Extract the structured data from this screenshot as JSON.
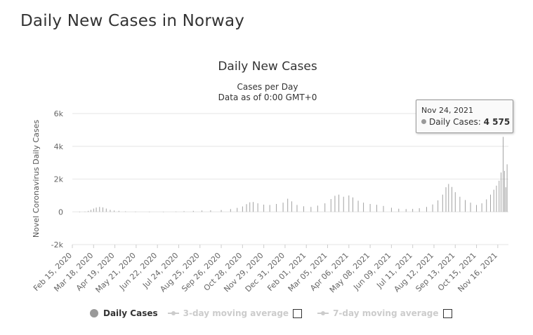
{
  "page": {
    "title": "Daily New Cases in Norway"
  },
  "chart_data": {
    "type": "bar",
    "title": "Daily New Cases",
    "subtitle_lines": [
      "Cases per Day",
      "Data as of 0:00 GMT+0"
    ],
    "ylabel": "Novel Coronavirus Daily Cases",
    "xlabel": "",
    "ylim": [
      -2000,
      6000
    ],
    "y_ticks": [
      {
        "value": -2000,
        "label": "-2k"
      },
      {
        "value": 0,
        "label": "0"
      },
      {
        "value": 2000,
        "label": "2k"
      },
      {
        "value": 4000,
        "label": "4k"
      },
      {
        "value": 6000,
        "label": "6k"
      }
    ],
    "x_range": [
      "2020-02-15",
      "2021-12-02"
    ],
    "x_ticks": [
      "Feb 15, 2020",
      "Mar 18, 2020",
      "Apr 19, 2020",
      "May 21, 2020",
      "Jun 22, 2020",
      "Jul 24, 2020",
      "Aug 25, 2020",
      "Sep 26, 2020",
      "Oct 28, 2020",
      "Nov 29, 2020",
      "Dec 31, 2020",
      "Feb 01, 2021",
      "Mar 05, 2021",
      "Apr 06, 2021",
      "May 08, 2021",
      "Jun 09, 2021",
      "Jul 11, 2021",
      "Aug 12, 2021",
      "Sep 13, 2021",
      "Oct 15, 2021",
      "Nov 16, 2021"
    ],
    "grid": true,
    "series": [
      {
        "name": "Daily Cases",
        "color": "#999999",
        "points": [
          [
            "2020-02-26",
            1
          ],
          [
            "2020-03-05",
            20
          ],
          [
            "2020-03-10",
            60
          ],
          [
            "2020-03-14",
            120
          ],
          [
            "2020-03-18",
            200
          ],
          [
            "2020-03-22",
            260
          ],
          [
            "2020-03-27",
            300
          ],
          [
            "2020-04-01",
            270
          ],
          [
            "2020-04-06",
            200
          ],
          [
            "2020-04-12",
            120
          ],
          [
            "2020-04-18",
            80
          ],
          [
            "2020-04-25",
            60
          ],
          [
            "2020-05-05",
            30
          ],
          [
            "2020-05-20",
            15
          ],
          [
            "2020-06-10",
            10
          ],
          [
            "2020-07-01",
            10
          ],
          [
            "2020-07-20",
            20
          ],
          [
            "2020-08-01",
            40
          ],
          [
            "2020-08-15",
            60
          ],
          [
            "2020-08-28",
            80
          ],
          [
            "2020-09-10",
            90
          ],
          [
            "2020-09-26",
            110
          ],
          [
            "2020-10-10",
            170
          ],
          [
            "2020-10-20",
            240
          ],
          [
            "2020-10-28",
            330
          ],
          [
            "2020-11-03",
            470
          ],
          [
            "2020-11-08",
            580
          ],
          [
            "2020-11-13",
            600
          ],
          [
            "2020-11-20",
            520
          ],
          [
            "2020-11-29",
            440
          ],
          [
            "2020-12-08",
            420
          ],
          [
            "2020-12-18",
            480
          ],
          [
            "2020-12-28",
            560
          ],
          [
            "2021-01-04",
            800
          ],
          [
            "2021-01-10",
            640
          ],
          [
            "2021-01-18",
            420
          ],
          [
            "2021-01-28",
            340
          ],
          [
            "2021-02-08",
            300
          ],
          [
            "2021-02-18",
            380
          ],
          [
            "2021-03-01",
            520
          ],
          [
            "2021-03-10",
            780
          ],
          [
            "2021-03-16",
            980
          ],
          [
            "2021-03-22",
            1050
          ],
          [
            "2021-03-29",
            920
          ],
          [
            "2021-04-06",
            1000
          ],
          [
            "2021-04-12",
            880
          ],
          [
            "2021-04-20",
            680
          ],
          [
            "2021-04-28",
            560
          ],
          [
            "2021-05-08",
            480
          ],
          [
            "2021-05-18",
            430
          ],
          [
            "2021-05-28",
            360
          ],
          [
            "2021-06-09",
            250
          ],
          [
            "2021-06-20",
            190
          ],
          [
            "2021-07-01",
            170
          ],
          [
            "2021-07-11",
            180
          ],
          [
            "2021-07-21",
            220
          ],
          [
            "2021-08-01",
            300
          ],
          [
            "2021-08-10",
            450
          ],
          [
            "2021-08-18",
            700
          ],
          [
            "2021-08-25",
            1050
          ],
          [
            "2021-08-30",
            1500
          ],
          [
            "2021-09-03",
            1700
          ],
          [
            "2021-09-08",
            1520
          ],
          [
            "2021-09-13",
            1200
          ],
          [
            "2021-09-20",
            920
          ],
          [
            "2021-09-28",
            720
          ],
          [
            "2021-10-06",
            560
          ],
          [
            "2021-10-15",
            420
          ],
          [
            "2021-10-23",
            520
          ],
          [
            "2021-10-30",
            760
          ],
          [
            "2021-11-05",
            1050
          ],
          [
            "2021-11-10",
            1350
          ],
          [
            "2021-11-14",
            1600
          ],
          [
            "2021-11-18",
            1900
          ],
          [
            "2021-11-21",
            2400
          ],
          [
            "2021-11-24",
            4575
          ],
          [
            "2021-11-26",
            2500
          ],
          [
            "2021-11-28",
            1500
          ],
          [
            "2021-11-30",
            2900
          ]
        ]
      },
      {
        "name": "3-day moving average",
        "color": "#cccccc",
        "points": []
      },
      {
        "name": "7-day moving average",
        "color": "#cccccc",
        "points": []
      }
    ],
    "legend": {
      "placement": "bottom",
      "items": [
        {
          "label": "Daily Cases",
          "active": true
        },
        {
          "label": "3-day moving average",
          "active": false
        },
        {
          "label": "7-day moving average",
          "active": false
        }
      ]
    },
    "tooltip": {
      "date": "Nov 24, 2021",
      "series": "Daily Cases",
      "value_text": "4 575"
    }
  }
}
